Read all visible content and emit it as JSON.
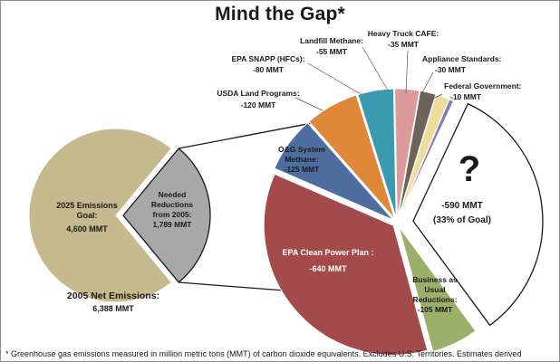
{
  "chart_data": [
    {
      "type": "pie",
      "title": "Mind the Gap*",
      "total_label": "2005 Net Emissions:",
      "total_value_label": "6,388 MMT",
      "slices": [
        {
          "name": "2025 Emissions Goal:",
          "value_label": "4,600 MMT",
          "value": 4600,
          "color": "#c6b98e"
        },
        {
          "name": "Needed Reductions from 2005:",
          "value_label": "1,789 MMT",
          "value": 1789,
          "color": "#a8a8a8"
        }
      ]
    },
    {
      "type": "pie",
      "slices": [
        {
          "name": "",
          "value_label": "-590  MMT",
          "note": "(33% of Goal)",
          "symbol": "?",
          "value": 590,
          "color": "#ffffff"
        },
        {
          "name": "Business as Usual Reductions:",
          "value_label": "-105 MMT",
          "value": 105,
          "color": "#9bb06a"
        },
        {
          "name": "EPA Clean Power Plan :",
          "value_label": "-640 MMT",
          "value": 640,
          "color": "#a34a4c"
        },
        {
          "name": "O&G System Methane:",
          "value_label": "-125 MMT",
          "value": 125,
          "color": "#4f6ea0"
        },
        {
          "name": "USDA Land Programs:",
          "value_label": "-120 MMT",
          "value": 120,
          "color": "#e0883a"
        },
        {
          "name": "EPA SNAPP (HFCs):",
          "value_label": "-80 MMT",
          "value": 80,
          "color": "#3a9ab0"
        },
        {
          "name": "Landfill Methane:",
          "value_label": "-55 MMT",
          "value": 55,
          "color": "#dc9b9b"
        },
        {
          "name": "Heavy Truck CAFE:",
          "value_label": "-35 MMT",
          "value": 35,
          "color": "#6d6358"
        },
        {
          "name": "Appliance Standards:",
          "value_label": "-30 MMT",
          "value": 30,
          "color": "#eedc9b"
        },
        {
          "name": "Federal Government:",
          "value_label": "-10 MMT",
          "value": 10,
          "color": "#8a7bb8"
        }
      ]
    }
  ],
  "footnote": "* Greenhouse gas emissions measured in million metric tons (MMT) of carbon dioxide equivalents. Excludes U.S. Territories. Estimates derived"
}
